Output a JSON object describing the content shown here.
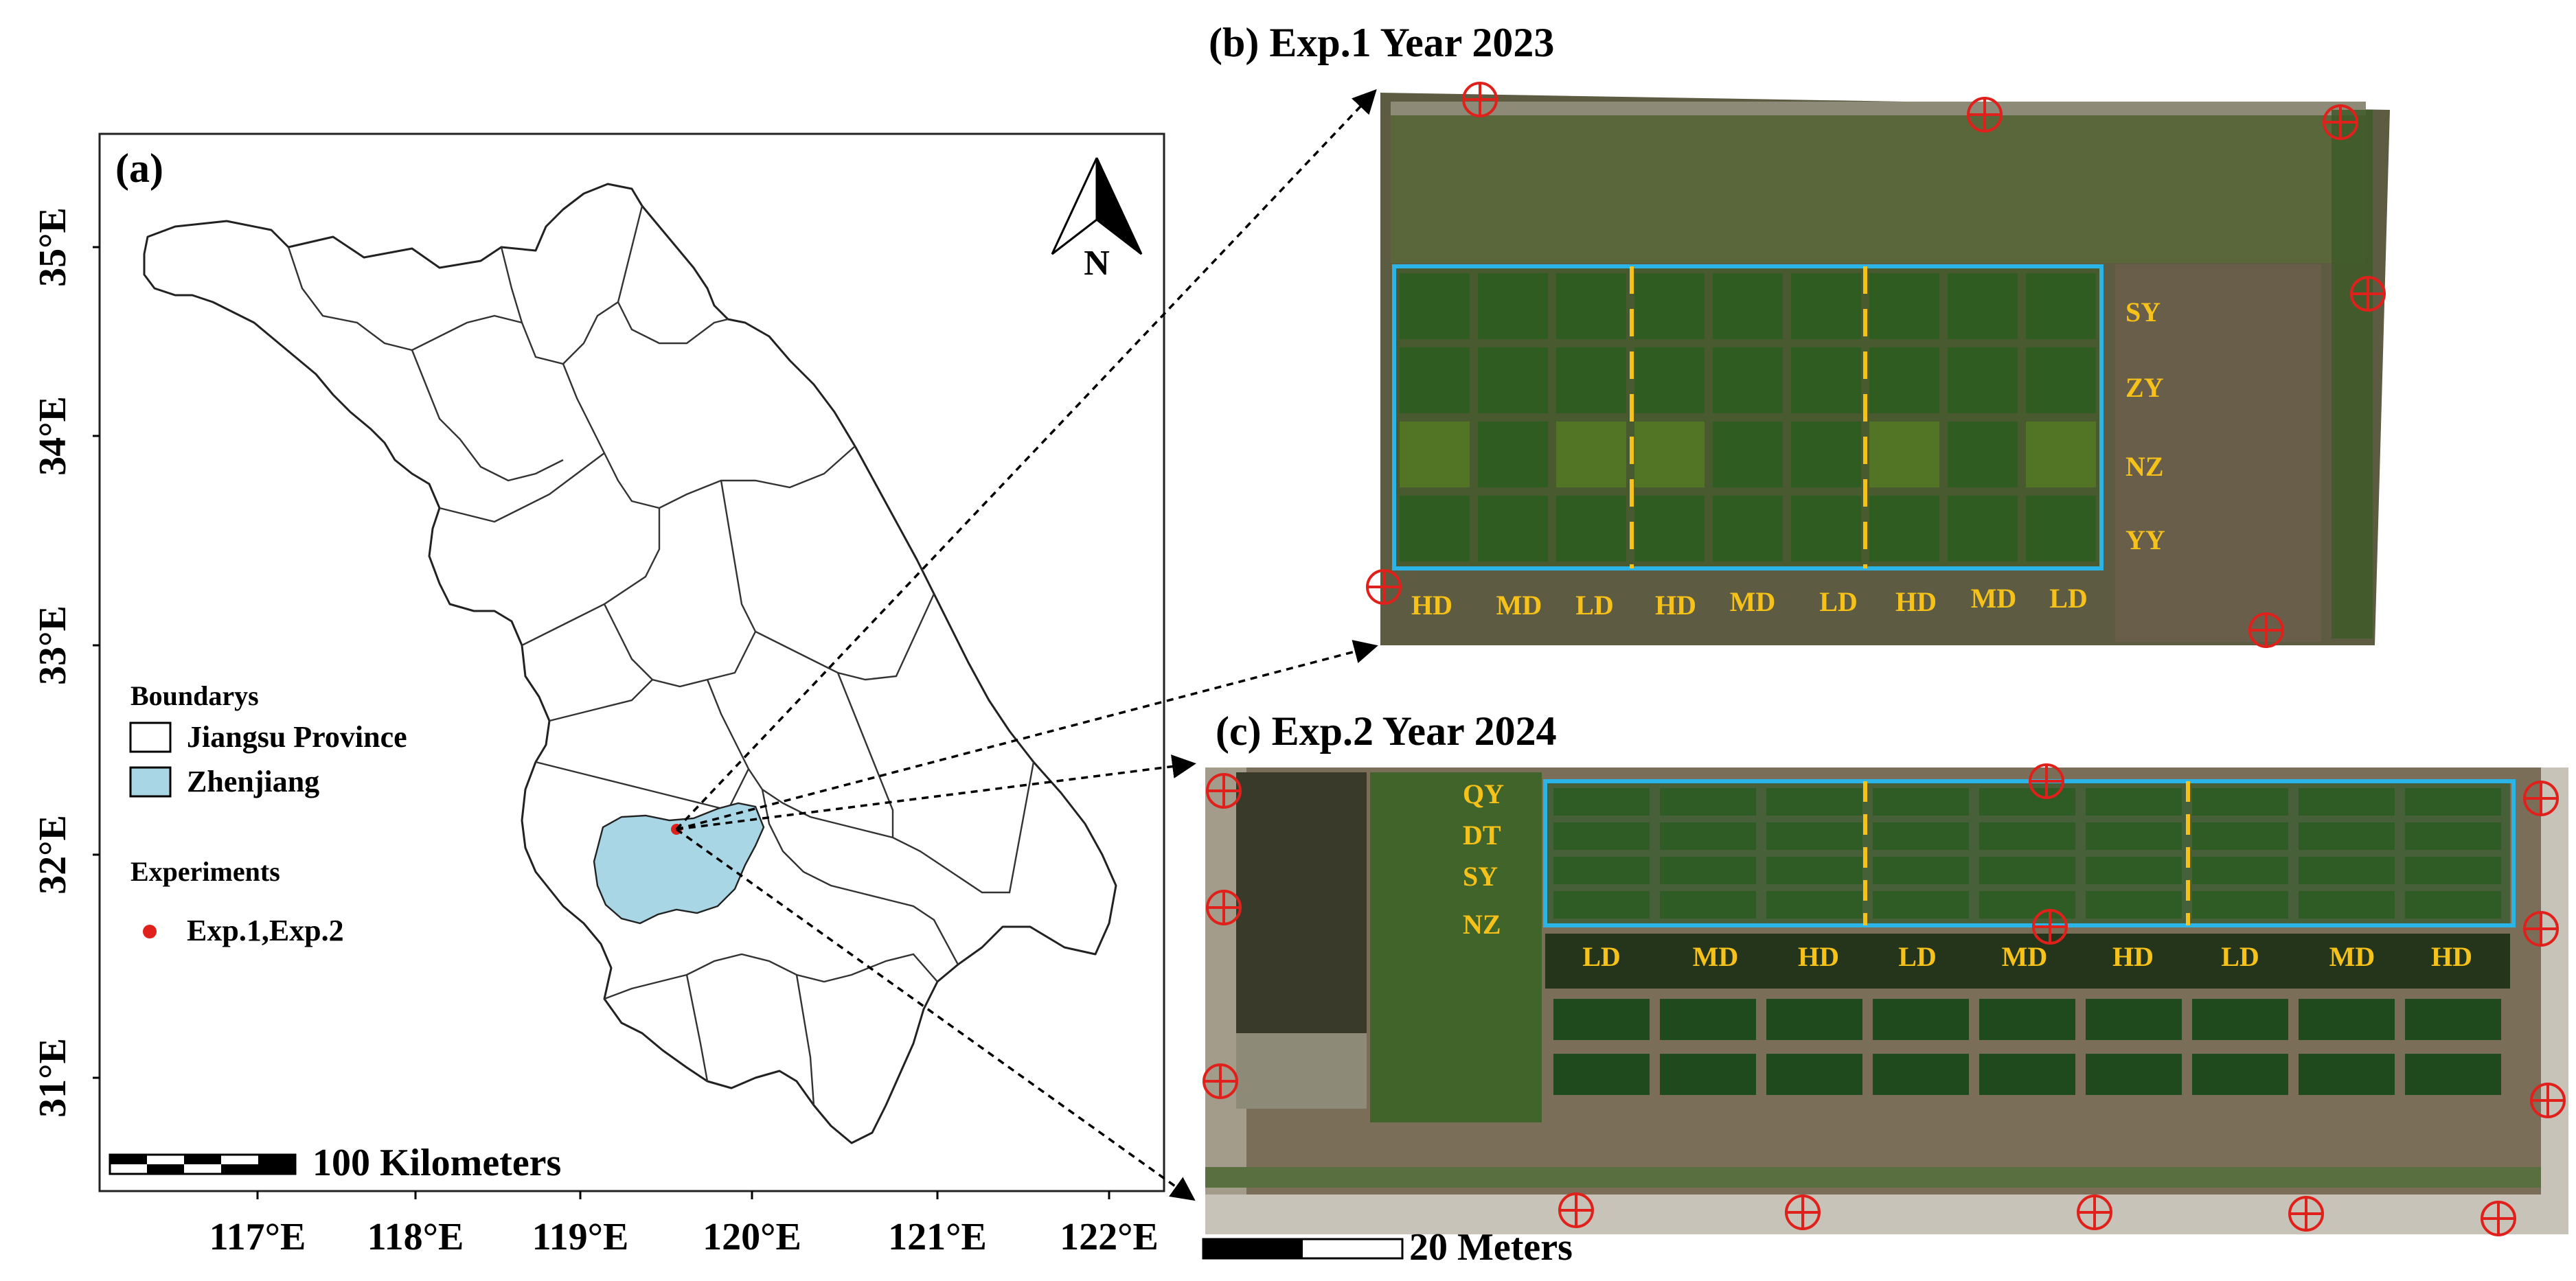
{
  "panel_a": {
    "label": "(a)",
    "lat_ticks": [
      "35°E",
      "34°E",
      "33°E",
      "32°E",
      "31°E"
    ],
    "lon_ticks": [
      "117°E",
      "118°E",
      "119°E",
      "120°E",
      "121°E",
      "122°E"
    ],
    "north_label": "N",
    "legend": {
      "boundaries_title": "Boundarys",
      "province_label": "Jiangsu Province",
      "zhenjiang_label": "Zhenjiang",
      "experiments_title": "Experiments",
      "experiments_label": "Exp.1,Exp.2"
    },
    "scale_bar_label": "100 Kilometers",
    "colors": {
      "zhenjiang_fill": "#a9d6e5",
      "experiment_point": "#e0201b"
    }
  },
  "panel_b": {
    "title": "(b) Exp.1 Year 2023",
    "row_labels": [
      "SY",
      "ZY",
      "NZ",
      "YY"
    ],
    "col_labels": [
      "HD",
      "MD",
      "LD",
      "HD",
      "MD",
      "LD",
      "HD",
      "MD",
      "LD"
    ],
    "colors": {
      "boundary": "#2ab4e8",
      "divider": "#f6c21a"
    }
  },
  "panel_c": {
    "title": "(c) Exp.2 Year 2024",
    "row_labels": [
      "QY",
      "DT",
      "SY",
      "NZ"
    ],
    "col_labels": [
      "LD",
      "MD",
      "HD",
      "LD",
      "MD",
      "HD",
      "LD",
      "MD",
      "HD"
    ],
    "scale_bar_label": "20 Meters",
    "colors": {
      "boundary": "#2ab4e8",
      "divider": "#f6c21a"
    }
  }
}
